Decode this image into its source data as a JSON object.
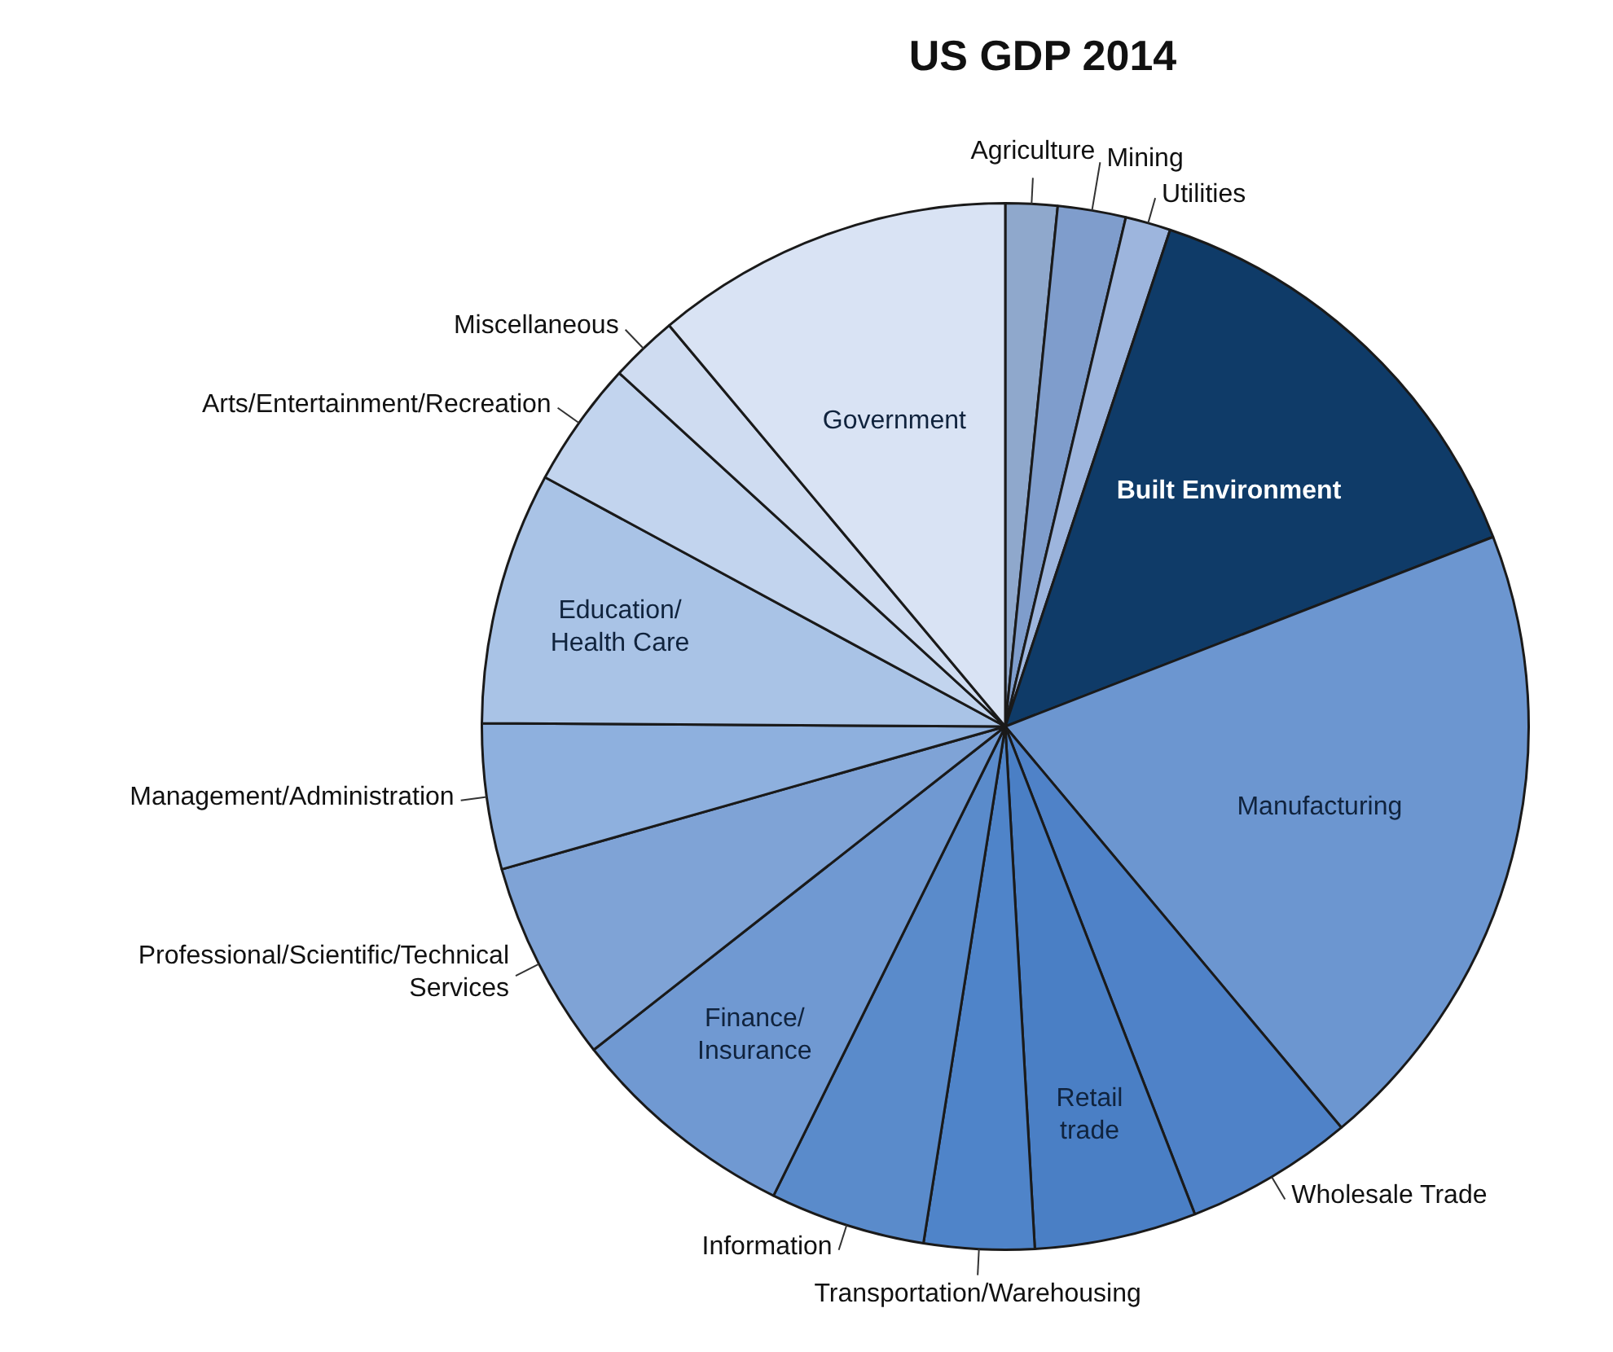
{
  "chart_data": {
    "type": "pie",
    "title": "US GDP 2014",
    "categories": [
      "Agriculture",
      "Mining",
      "Utilities",
      "Built Environment",
      "Manufacturing",
      "Wholesale Trade",
      "Retail trade",
      "Transportation/Warehousing",
      "Information",
      "Finance/Insurance",
      "Professional/Scientific/Technical Services",
      "Management/Administration",
      "Education/Health Care",
      "Arts/Entertainment/Recreation",
      "Miscellaneous",
      "Government"
    ],
    "values": [
      1.6,
      2.1,
      1.4,
      14,
      19.8,
      5.2,
      5,
      3.4,
      4.8,
      7.1,
      6.2,
      4.5,
      7.8,
      3.9,
      2.1,
      11.1
    ],
    "colors": [
      "#8fa8cc",
      "#7f9dcc",
      "#9db5dd",
      "#0f3b68",
      "#6c96d0",
      "#4f82c8",
      "#4a7fc5",
      "#4f84c9",
      "#5a8bcb",
      "#7099d2",
      "#7fa3d6",
      "#8eb0de",
      "#a9c3e6",
      "#c2d4ee",
      "#cfdcf1",
      "#d9e3f4"
    ],
    "legend": false
  }
}
